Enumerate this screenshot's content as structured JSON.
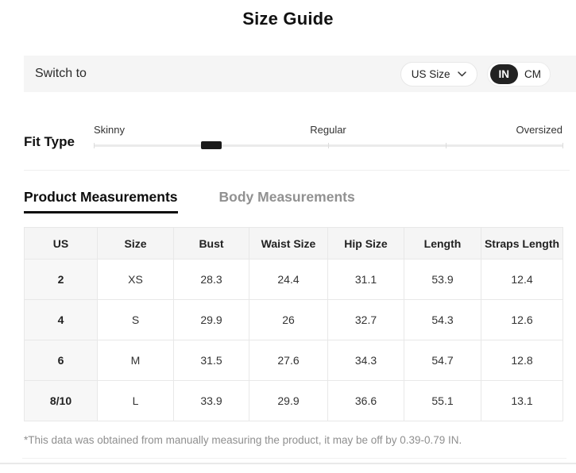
{
  "page": {
    "title": "Size Guide"
  },
  "switch_bar": {
    "label": "Switch to",
    "size_dropdown": {
      "value": "US Size"
    },
    "unit_toggle": {
      "options": [
        "IN",
        "CM"
      ],
      "selected": "IN"
    }
  },
  "fit_type": {
    "label": "Fit Type",
    "scale_labels": [
      "Skinny",
      "Regular",
      "Oversized"
    ],
    "tick_percents": [
      0,
      50,
      75,
      100
    ],
    "marker_percent": 25
  },
  "tabs": [
    {
      "label": "Product Measurements",
      "active": true
    },
    {
      "label": "Body Measurements",
      "active": false
    }
  ],
  "table": {
    "headers": [
      "US",
      "Size",
      "Bust",
      "Waist Size",
      "Hip Size",
      "Length",
      "Straps Length"
    ],
    "rows": [
      [
        "2",
        "XS",
        "28.3",
        "24.4",
        "31.1",
        "53.9",
        "12.4"
      ],
      [
        "4",
        "S",
        "29.9",
        "26",
        "32.7",
        "54.3",
        "12.6"
      ],
      [
        "6",
        "M",
        "31.5",
        "27.6",
        "34.3",
        "54.7",
        "12.8"
      ],
      [
        "8/10",
        "L",
        "33.9",
        "29.9",
        "36.6",
        "55.1",
        "13.1"
      ]
    ]
  },
  "footnote": "*This data was obtained from manually measuring the product, it may be off by 0.39-0.79 IN.",
  "colors": {
    "accent_dark": "#1a1a1a",
    "bar_background": "#f5f5f5",
    "table_header_background": "#f5f5f5",
    "border": "#e8e8e8",
    "muted_text": "#8f8f8f"
  }
}
